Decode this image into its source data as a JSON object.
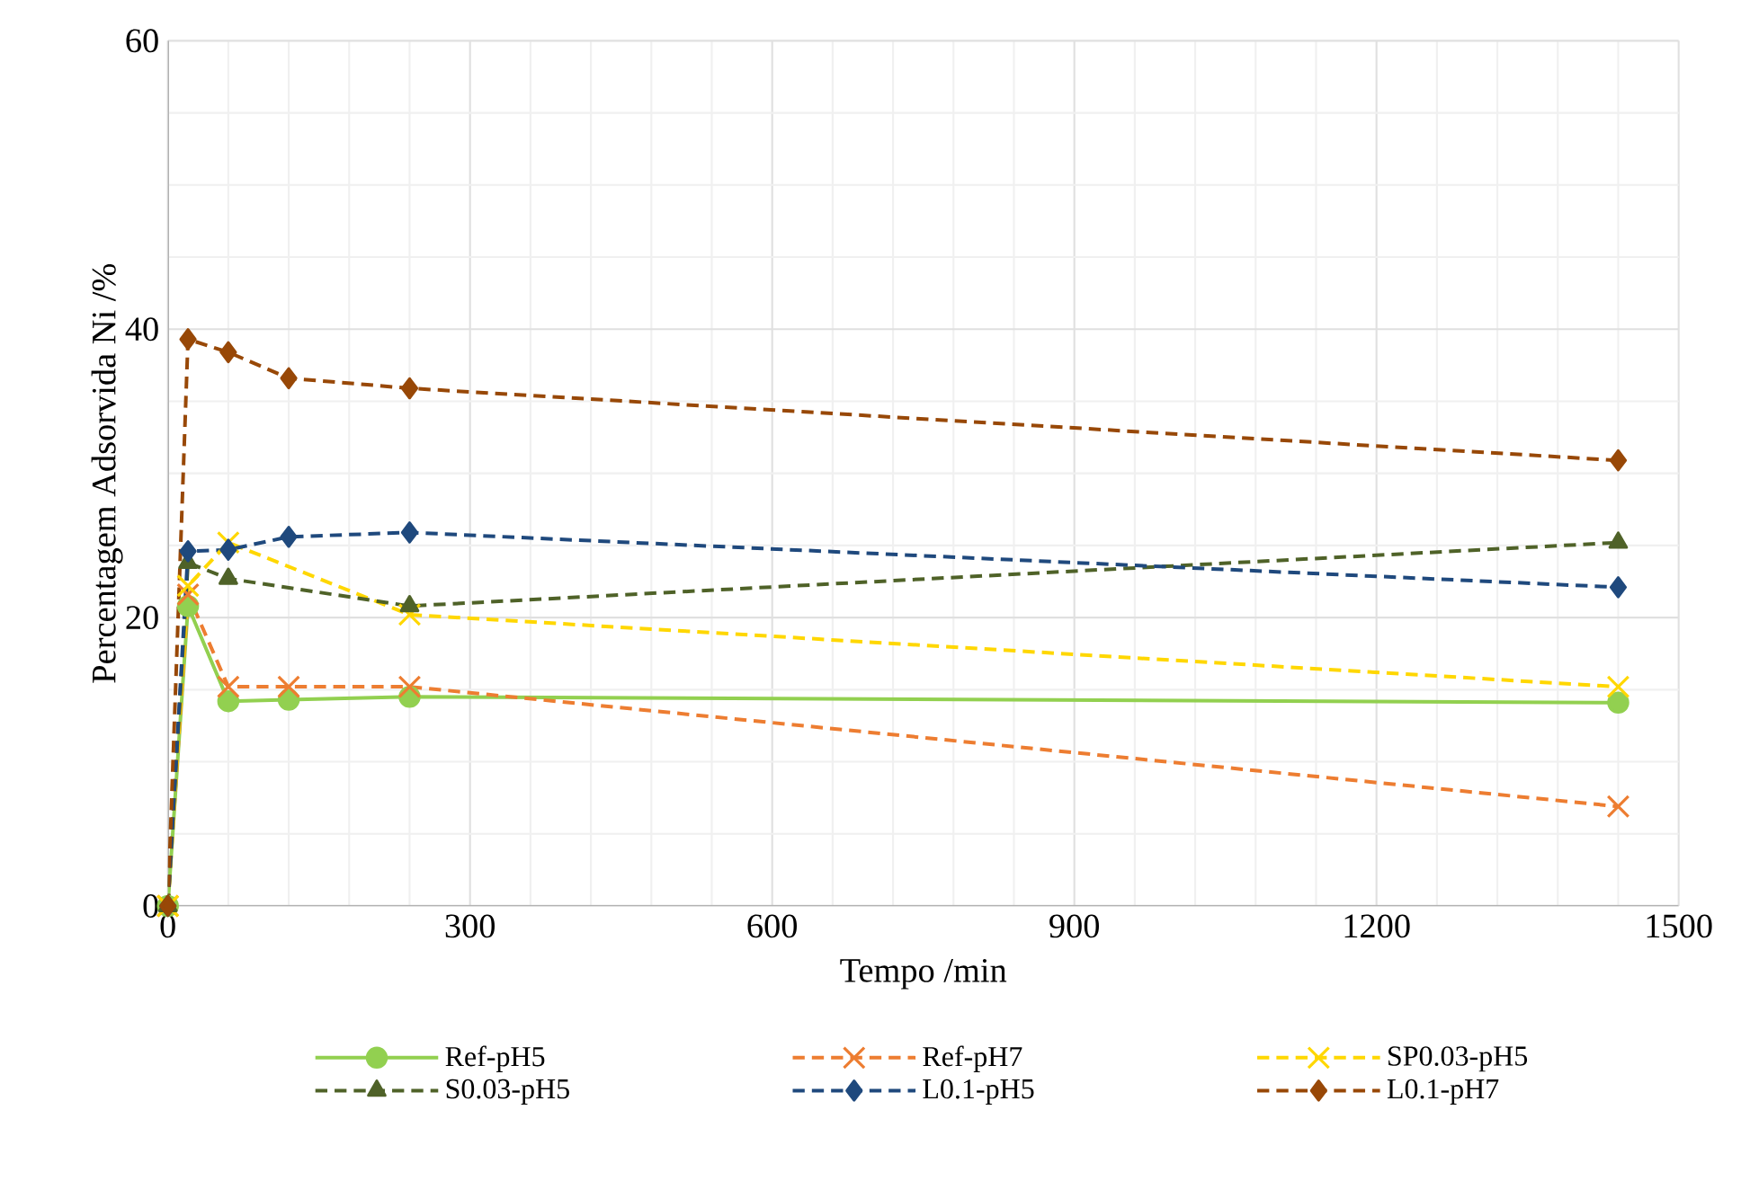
{
  "chart_data": {
    "type": "line",
    "xlabel": "Tempo /min",
    "ylabel": "Percentagem Adsorvida Ni /%",
    "xlim": [
      0,
      1500
    ],
    "xticks": [
      0,
      300,
      600,
      900,
      1200,
      1500
    ],
    "ylim": [
      0,
      60
    ],
    "yticks": [
      0,
      20,
      40,
      60
    ],
    "grid": true,
    "legend": "bottom",
    "series": [
      {
        "name": "Ref-pH5",
        "color": "#92d050",
        "marker": "circle",
        "line_style": "solid",
        "x": [
          0,
          20,
          60,
          120,
          240,
          1440
        ],
        "values": [
          0,
          20.8,
          14.2,
          14.3,
          14.5,
          14.1
        ]
      },
      {
        "name": "Ref-pH7",
        "color": "#ed7d31",
        "marker": "cross",
        "line_style": "dashed",
        "x": [
          0,
          20,
          60,
          120,
          240,
          1440
        ],
        "values": [
          0,
          21.6,
          15.2,
          15.2,
          15.2,
          6.9
        ]
      },
      {
        "name": "SP0.03-pH5",
        "color": "#ffd700",
        "marker": "cross",
        "line_style": "dashed",
        "x": [
          0,
          20,
          60,
          240,
          1440
        ],
        "values": [
          0,
          22.2,
          25.2,
          20.2,
          15.2
        ]
      },
      {
        "name": "S0.03-pH5",
        "color": "#4f6228",
        "marker": "triangle",
        "line_style": "dashed",
        "x": [
          0,
          20,
          60,
          240,
          1440
        ],
        "values": [
          0,
          23.8,
          22.7,
          20.8,
          25.2
        ]
      },
      {
        "name": "L0.1-pH5",
        "color": "#1f497d",
        "marker": "diamond",
        "line_style": "dashed",
        "x": [
          0,
          20,
          60,
          120,
          240,
          1440
        ],
        "values": [
          0,
          24.6,
          24.7,
          25.6,
          25.9,
          22.1
        ]
      },
      {
        "name": "L0.1-pH7",
        "color": "#984807",
        "marker": "diamond",
        "line_style": "dashed",
        "x": [
          0,
          20,
          60,
          120,
          240,
          1440
        ],
        "values": [
          0,
          39.3,
          38.4,
          36.6,
          35.9,
          30.9
        ]
      }
    ]
  }
}
